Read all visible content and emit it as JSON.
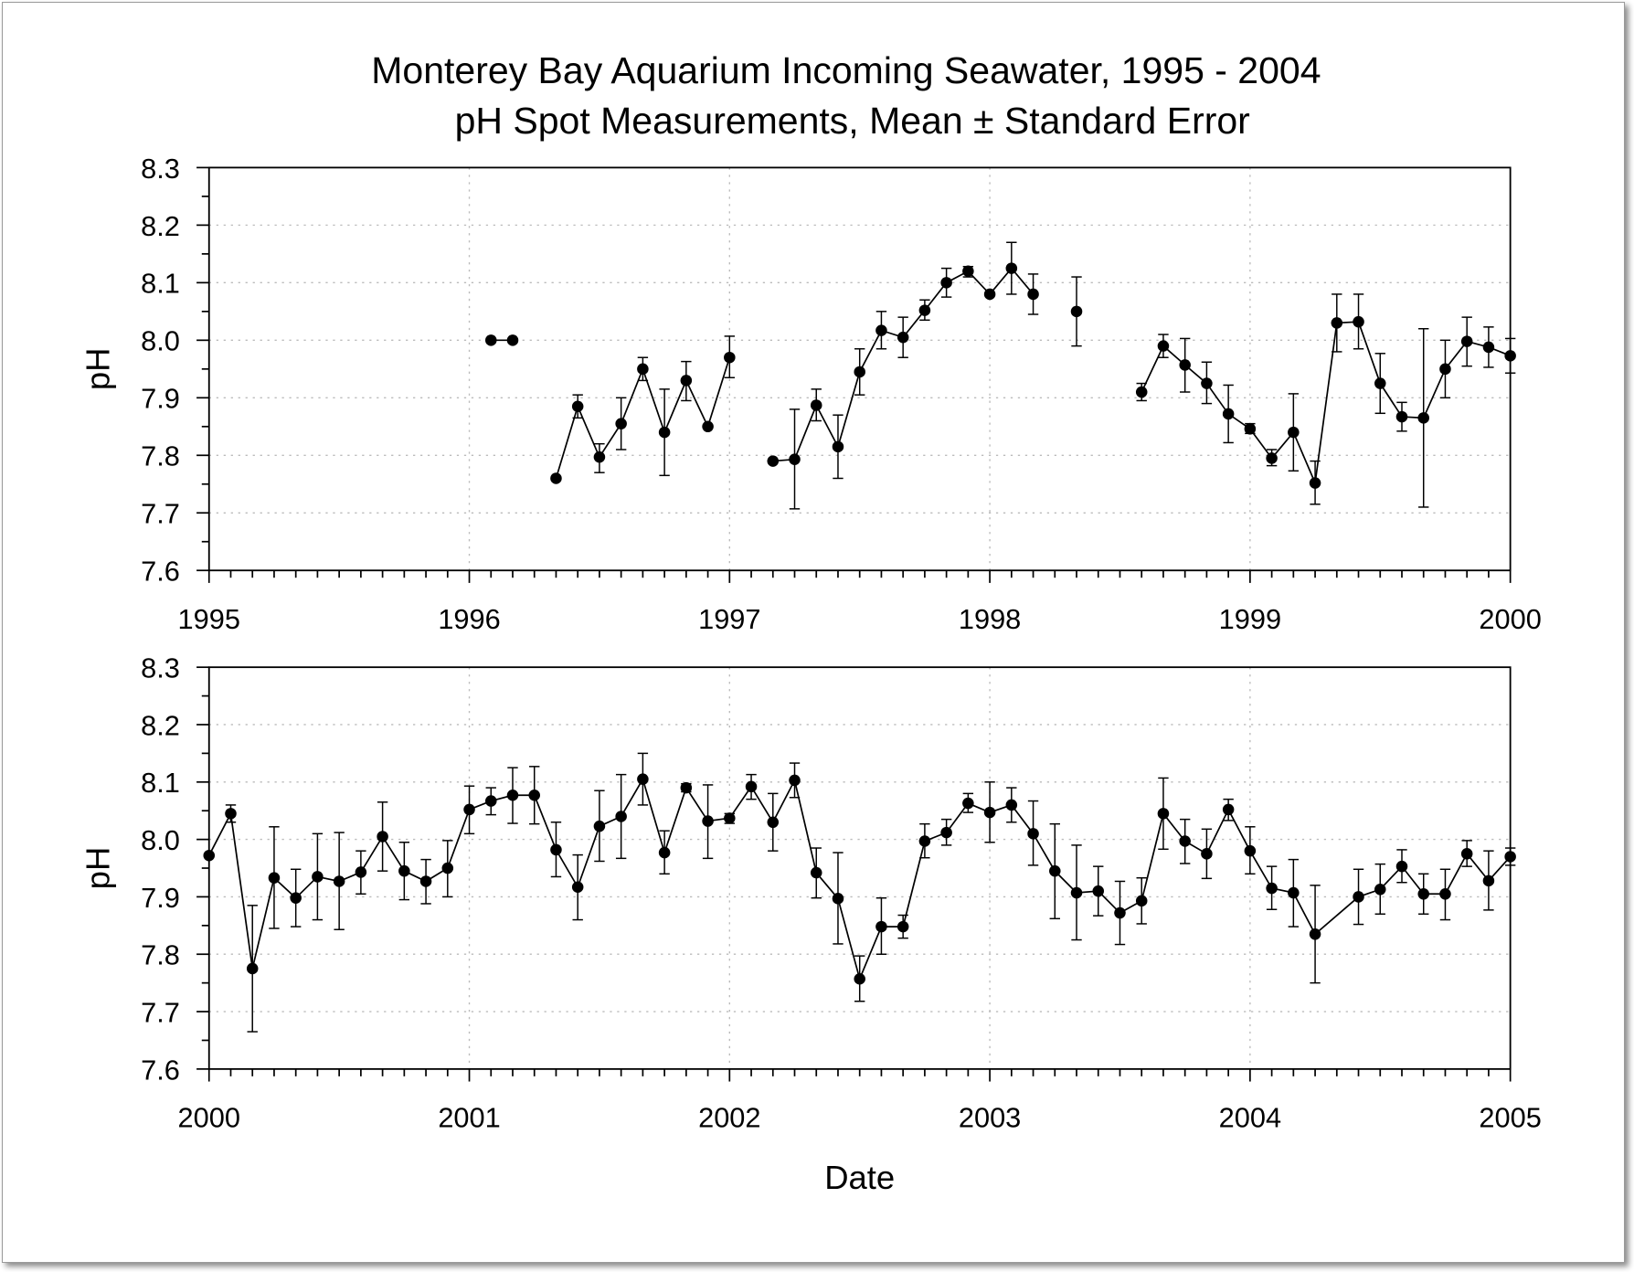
{
  "chart_data": [
    {
      "type": "line",
      "title": [
        "Monterey Bay Aquarium Incoming Seawater, 1995 - 2004",
        "pH Spot Measurements, Mean ± Standard Error"
      ],
      "xlabel": "",
      "ylabel": "pH",
      "xlim": [
        1995,
        2000
      ],
      "ylim": [
        7.6,
        8.3
      ],
      "xticks": [
        "1995",
        "1996",
        "1997",
        "1998",
        "1999",
        "2000"
      ],
      "yticks": [
        "7.6",
        "7.7",
        "7.8",
        "7.9",
        "8.0",
        "8.1",
        "8.2",
        "8.3"
      ],
      "grid": true,
      "series_note": "points are [month, mean, mean-SE, mean+SE]",
      "segments": [
        [
          [
            "1996-02",
            8.0,
            null,
            null
          ],
          [
            "1996-03",
            8.0,
            null,
            null
          ]
        ],
        [
          [
            "1996-05",
            7.76,
            null,
            null
          ],
          [
            "1996-06",
            7.885,
            7.865,
            7.905
          ],
          [
            "1996-07",
            7.797,
            7.77,
            7.82
          ],
          [
            "1996-08",
            7.855,
            7.81,
            7.9
          ],
          [
            "1996-09",
            7.95,
            7.93,
            7.97
          ],
          [
            "1996-10",
            7.84,
            7.765,
            7.915
          ],
          [
            "1996-11",
            7.93,
            7.895,
            7.963
          ],
          [
            "1996-12",
            7.85,
            null,
            null
          ],
          [
            "1997-01",
            7.97,
            7.935,
            8.007
          ]
        ],
        [
          [
            "1997-03",
            7.79,
            null,
            null
          ],
          [
            "1997-04",
            7.793,
            7.707,
            7.88
          ],
          [
            "1997-05",
            7.887,
            7.86,
            7.915
          ],
          [
            "1997-06",
            7.815,
            7.76,
            7.87
          ],
          [
            "1997-07",
            7.945,
            7.905,
            7.985
          ],
          [
            "1997-08",
            8.017,
            7.985,
            8.05
          ],
          [
            "1997-09",
            8.005,
            7.97,
            8.04
          ],
          [
            "1997-10",
            8.052,
            8.035,
            8.07
          ],
          [
            "1997-11",
            8.1,
            8.075,
            8.125
          ],
          [
            "1997-12",
            8.12,
            8.11,
            8.128
          ],
          [
            "1998-01",
            8.08,
            null,
            null
          ],
          [
            "1998-02",
            8.125,
            8.08,
            8.17
          ],
          [
            "1998-03",
            8.08,
            8.045,
            8.115
          ]
        ],
        [
          [
            "1998-05",
            8.05,
            7.99,
            8.11
          ]
        ],
        [
          [
            "1998-08",
            7.91,
            7.895,
            7.925
          ],
          [
            "1998-09",
            7.99,
            7.97,
            8.01
          ],
          [
            "1998-10",
            7.957,
            7.91,
            8.003
          ],
          [
            "1998-11",
            7.925,
            7.89,
            7.962
          ],
          [
            "1998-12",
            7.872,
            7.822,
            7.922
          ],
          [
            "1999-01",
            7.846,
            7.838,
            7.855
          ],
          [
            "1999-02",
            7.795,
            7.782,
            7.81
          ],
          [
            "1999-03",
            7.84,
            7.773,
            7.907
          ],
          [
            "1999-04",
            7.752,
            7.715,
            7.79
          ],
          [
            "1999-05",
            8.03,
            7.98,
            8.08
          ],
          [
            "1999-06",
            8.032,
            7.985,
            8.08
          ],
          [
            "1999-07",
            7.925,
            7.873,
            7.977
          ],
          [
            "1999-08",
            7.867,
            7.842,
            7.892
          ],
          [
            "1999-09",
            7.865,
            7.71,
            8.02
          ],
          [
            "1999-10",
            7.95,
            7.9,
            8.0
          ],
          [
            "1999-11",
            7.998,
            7.955,
            8.04
          ],
          [
            "1999-12",
            7.988,
            7.953,
            8.023
          ],
          [
            "2000-01",
            7.973,
            7.943,
            8.003
          ]
        ]
      ]
    },
    {
      "type": "line",
      "xlabel": "Date",
      "ylabel": "pH",
      "xlim": [
        2000,
        2005
      ],
      "ylim": [
        7.6,
        8.3
      ],
      "xticks": [
        "2000",
        "2001",
        "2002",
        "2003",
        "2004",
        "2005"
      ],
      "yticks": [
        "7.6",
        "7.7",
        "7.8",
        "7.9",
        "8.0",
        "8.1",
        "8.2",
        "8.3"
      ],
      "grid": true,
      "segments": [
        [
          [
            "2000-01",
            7.972,
            null,
            null
          ],
          [
            "2000-02",
            8.045,
            8.03,
            8.06
          ],
          [
            "2000-03",
            7.775,
            7.665,
            7.885
          ],
          [
            "2000-04",
            7.933,
            7.845,
            8.022
          ],
          [
            "2000-05",
            7.898,
            7.848,
            7.948
          ],
          [
            "2000-06",
            7.935,
            7.86,
            8.01
          ],
          [
            "2000-07",
            7.927,
            7.843,
            8.012
          ],
          [
            "2000-08",
            7.943,
            7.905,
            7.98
          ],
          [
            "2000-09",
            8.005,
            7.945,
            8.065
          ],
          [
            "2000-10",
            7.945,
            7.895,
            7.995
          ],
          [
            "2000-11",
            7.927,
            7.888,
            7.965
          ],
          [
            "2000-12",
            7.95,
            7.9,
            7.998
          ],
          [
            "2001-01",
            8.052,
            8.01,
            8.093
          ],
          [
            "2001-02",
            8.067,
            8.043,
            8.09
          ],
          [
            "2001-03",
            8.077,
            8.028,
            8.125
          ],
          [
            "2001-04",
            8.077,
            8.027,
            8.127
          ],
          [
            "2001-05",
            7.982,
            7.935,
            8.03
          ],
          [
            "2001-06",
            7.917,
            7.86,
            7.973
          ],
          [
            "2001-07",
            8.023,
            7.962,
            8.085
          ],
          [
            "2001-08",
            8.04,
            7.967,
            8.113
          ],
          [
            "2001-09",
            8.105,
            8.06,
            8.15
          ],
          [
            "2001-10",
            7.977,
            7.94,
            8.015
          ],
          [
            "2001-11",
            8.09,
            8.083,
            8.097
          ],
          [
            "2001-12",
            8.032,
            7.967,
            8.095
          ],
          [
            "2002-01",
            8.037,
            8.028,
            8.045
          ],
          [
            "2002-02",
            8.092,
            8.07,
            8.113
          ],
          [
            "2002-03",
            8.03,
            7.98,
            8.08
          ],
          [
            "2002-04",
            8.103,
            8.073,
            8.133
          ],
          [
            "2002-05",
            7.942,
            7.898,
            7.985
          ],
          [
            "2002-06",
            7.897,
            7.818,
            7.977
          ],
          [
            "2002-07",
            7.757,
            7.718,
            7.797
          ],
          [
            "2002-08",
            7.848,
            7.8,
            7.898
          ],
          [
            "2002-09",
            7.848,
            7.828,
            7.868
          ],
          [
            "2002-10",
            7.997,
            7.968,
            8.027
          ],
          [
            "2002-11",
            8.012,
            7.99,
            8.035
          ],
          [
            "2002-12",
            8.063,
            8.047,
            8.08
          ],
          [
            "2003-01",
            8.047,
            7.995,
            8.1
          ],
          [
            "2003-02",
            8.06,
            8.03,
            8.09
          ],
          [
            "2003-03",
            8.01,
            7.955,
            8.067
          ],
          [
            "2003-04",
            7.945,
            7.862,
            8.027
          ],
          [
            "2003-05",
            7.907,
            7.825,
            7.99
          ],
          [
            "2003-06",
            7.91,
            7.867,
            7.953
          ],
          [
            "2003-07",
            7.872,
            7.817,
            7.927
          ],
          [
            "2003-08",
            7.893,
            7.853,
            7.933
          ],
          [
            "2003-09",
            8.045,
            7.983,
            8.107
          ],
          [
            "2003-10",
            7.997,
            7.958,
            8.035
          ],
          [
            "2003-11",
            7.975,
            7.932,
            8.018
          ],
          [
            "2003-12",
            8.052,
            8.033,
            8.07
          ],
          [
            "2004-01",
            7.98,
            7.94,
            8.022
          ],
          [
            "2004-02",
            7.915,
            7.878,
            7.953
          ],
          [
            "2004-03",
            7.907,
            7.848,
            7.965
          ],
          [
            "2004-04",
            7.835,
            7.75,
            7.92
          ],
          [
            "2004-06",
            7.9,
            7.852,
            7.948
          ],
          [
            "2004-07",
            7.913,
            7.87,
            7.957
          ],
          [
            "2004-08",
            7.953,
            7.925,
            7.982
          ],
          [
            "2004-09",
            7.905,
            7.87,
            7.94
          ],
          [
            "2004-10",
            7.905,
            7.86,
            7.948
          ],
          [
            "2004-11",
            7.975,
            7.953,
            7.998
          ],
          [
            "2004-12",
            7.928,
            7.877,
            7.98
          ],
          [
            "2005-01",
            7.97,
            7.955,
            7.985
          ]
        ]
      ]
    }
  ]
}
